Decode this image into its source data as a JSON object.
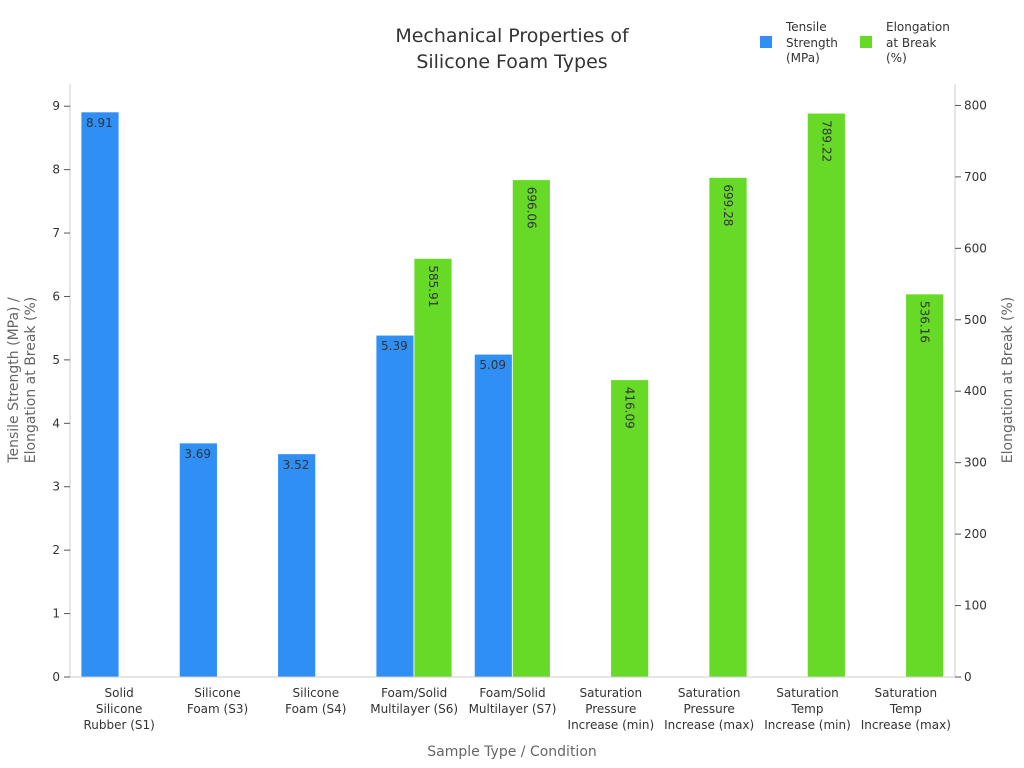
{
  "chart_data": {
    "type": "bar",
    "title_lines": [
      "Mechanical Properties of",
      "Silicone Foam Types"
    ],
    "xlabel": "Sample Type / Condition",
    "ylabel_lines": [
      "Tensile Strength (MPa) /",
      "Elongation at Break (%)"
    ],
    "y2label": "Elongation at Break (%)",
    "categories": [
      [
        "Solid",
        "Silicone",
        "Rubber (S1)"
      ],
      [
        "Silicone",
        "Foam (S3)"
      ],
      [
        "Silicone",
        "Foam (S4)"
      ],
      [
        "Foam/Solid",
        "Multilayer (S6)"
      ],
      [
        "Foam/Solid",
        "Multilayer (S7)"
      ],
      [
        "Saturation",
        "Pressure",
        "Increase (min)"
      ],
      [
        "Saturation",
        "Pressure",
        "Increase (max)"
      ],
      [
        "Saturation",
        "Temp",
        "Increase (min)"
      ],
      [
        "Saturation",
        "Temp",
        "Increase (max)"
      ]
    ],
    "series": [
      {
        "name_lines": [
          "Tensile",
          "Strength",
          "(MPa)"
        ],
        "axis": "left",
        "color": "#2f8ff5",
        "values": [
          8.91,
          3.69,
          3.52,
          5.39,
          5.09,
          null,
          null,
          null,
          null
        ],
        "labels": [
          "8.91",
          "3.69",
          "3.52",
          "5.39",
          "5.09",
          "",
          "",
          "",
          ""
        ]
      },
      {
        "name_lines": [
          "Elongation",
          "at Break",
          "(%)"
        ],
        "axis": "right",
        "color": "#66da26",
        "values": [
          null,
          null,
          null,
          585.91,
          696.06,
          416.09,
          699.28,
          789.22,
          536.16
        ],
        "labels": [
          "",
          "",
          "",
          "585.91",
          "696.06",
          "416.09",
          "699.28",
          "789.22",
          "536.16"
        ]
      }
    ],
    "ylim": [
      0,
      9.35
    ],
    "y2lim": [
      0,
      830
    ],
    "yticks": [
      0,
      1,
      2,
      3,
      4,
      5,
      6,
      7,
      8,
      9
    ],
    "y2ticks": [
      0,
      100,
      200,
      300,
      400,
      500,
      600,
      700,
      800
    ],
    "grid": false,
    "legend_position": "top-right"
  }
}
